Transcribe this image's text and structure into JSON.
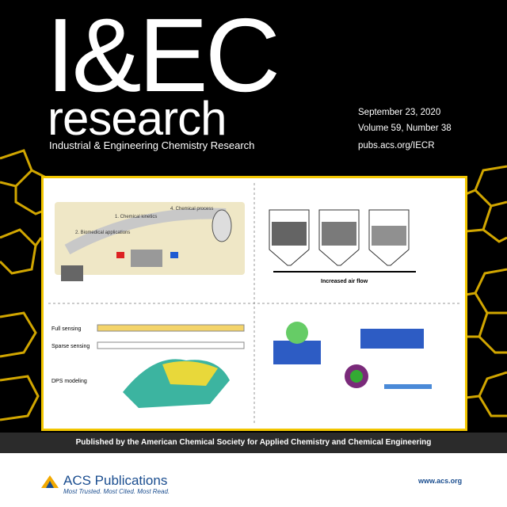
{
  "header": {
    "title": "I&EC",
    "subtitle": "research",
    "journal_name": "Industrial & Engineering Chemistry Research"
  },
  "issue": {
    "date": "September 23, 2020",
    "volume": "Volume 59, Number 38",
    "url": "pubs.acs.org/IECR"
  },
  "figures": {
    "top_left": {
      "labels": [
        "1. Chemical kinetics",
        "2. Biomedical applications",
        "4. Chemical process"
      ]
    },
    "top_right": {
      "labels": [
        "Increased air flow"
      ]
    },
    "bottom_left": {
      "labels": [
        "Full sensing",
        "Sparse sensing",
        "DPS modeling"
      ]
    }
  },
  "footer": {
    "publisher_line": "Published by the American Chemical Society for Applied Chemistry and Chemical Engineering",
    "brand": "ACS Publications",
    "tagline": "Most Trusted. Most Cited. Most Read.",
    "website": "www.acs.org"
  }
}
